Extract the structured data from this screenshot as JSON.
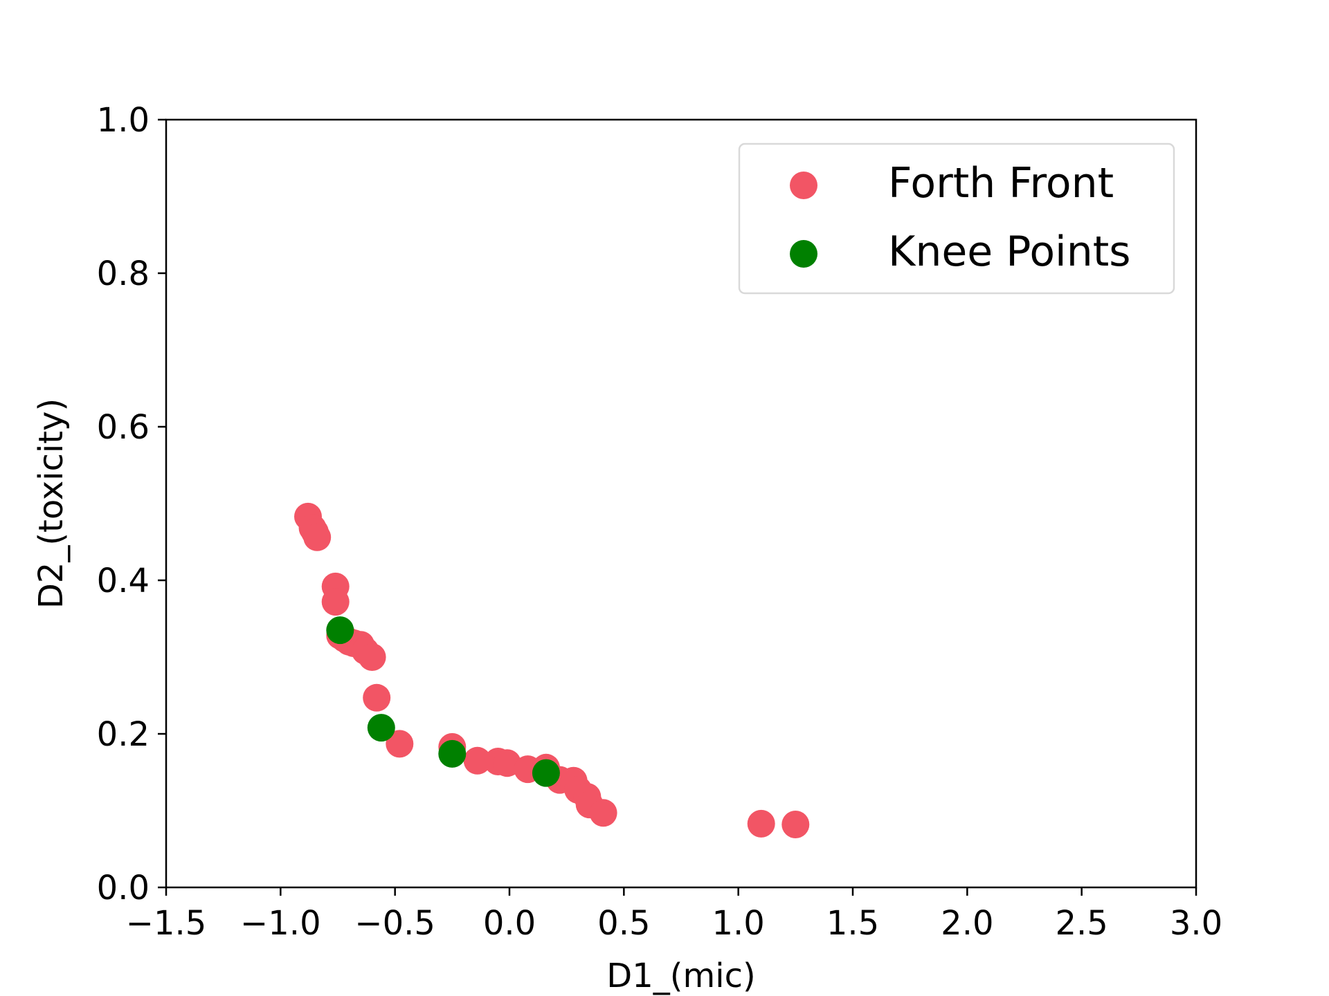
{
  "chart_data": {
    "type": "scatter",
    "title": "",
    "xlabel": "D1_(mic)",
    "ylabel": "D2_(toxicity)",
    "xlim": [
      -1.5,
      3.0
    ],
    "ylim": [
      0.0,
      1.0
    ],
    "xticks": [
      -1.5,
      -1.0,
      -0.5,
      0.0,
      0.5,
      1.0,
      1.5,
      2.0,
      2.5,
      3.0
    ],
    "xtick_labels": [
      "−1.5",
      "−1.0",
      "−0.5",
      "0.0",
      "0.5",
      "1.0",
      "1.5",
      "2.0",
      "2.5",
      "3.0"
    ],
    "yticks": [
      0.0,
      0.2,
      0.4,
      0.6,
      0.8,
      1.0
    ],
    "ytick_labels": [
      "0.0",
      "0.2",
      "0.4",
      "0.6",
      "0.8",
      "1.0"
    ],
    "grid": false,
    "legend_position": "top-right",
    "series": [
      {
        "name": "Forth Front",
        "color": "#f25565",
        "points": [
          [
            -0.88,
            0.483
          ],
          [
            -0.86,
            0.468
          ],
          [
            -0.85,
            0.463
          ],
          [
            -0.84,
            0.456
          ],
          [
            -0.76,
            0.392
          ],
          [
            -0.76,
            0.372
          ],
          [
            -0.74,
            0.328
          ],
          [
            -0.72,
            0.324
          ],
          [
            -0.7,
            0.32
          ],
          [
            -0.68,
            0.318
          ],
          [
            -0.65,
            0.316
          ],
          [
            -0.63,
            0.308
          ],
          [
            -0.6,
            0.3
          ],
          [
            -0.58,
            0.247
          ],
          [
            -0.48,
            0.187
          ],
          [
            -0.25,
            0.183
          ],
          [
            -0.14,
            0.165
          ],
          [
            -0.05,
            0.164
          ],
          [
            -0.01,
            0.162
          ],
          [
            0.08,
            0.154
          ],
          [
            0.16,
            0.156
          ],
          [
            0.22,
            0.14
          ],
          [
            0.28,
            0.139
          ],
          [
            0.3,
            0.127
          ],
          [
            0.34,
            0.118
          ],
          [
            0.35,
            0.108
          ],
          [
            0.41,
            0.097
          ],
          [
            1.1,
            0.083
          ],
          [
            1.25,
            0.082
          ]
        ]
      },
      {
        "name": "Knee Points",
        "color": "#008000",
        "points": [
          [
            -0.74,
            0.335
          ],
          [
            -0.56,
            0.208
          ],
          [
            -0.25,
            0.174
          ],
          [
            0.16,
            0.149
          ]
        ]
      }
    ]
  }
}
